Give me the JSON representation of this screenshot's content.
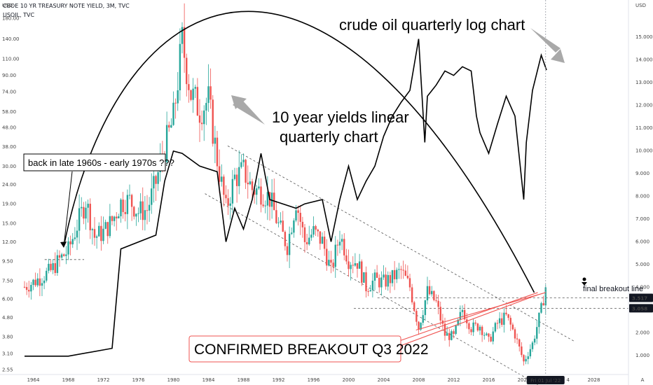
{
  "header": {
    "symbol_line": "CBOE 10 YR TREASURY NOTE YIELD, 3M, TVC",
    "overlay_line": "USOIL, TVC"
  },
  "axes": {
    "left_unit": "USD",
    "right_unit": "USD",
    "left_ticks": [
      {
        "label": "180.00"
      },
      {
        "label": "140.00"
      },
      {
        "label": "110.00"
      },
      {
        "label": "90.00"
      },
      {
        "label": "74.00"
      },
      {
        "label": "58.00"
      },
      {
        "label": "48.00"
      },
      {
        "label": "38.00"
      },
      {
        "label": "30.00"
      },
      {
        "label": "24.00"
      },
      {
        "label": "19.00"
      },
      {
        "label": "15.00"
      },
      {
        "label": "12.00"
      },
      {
        "label": "9.50"
      },
      {
        "label": "7.50"
      },
      {
        "label": "6.00"
      },
      {
        "label": "4.80"
      },
      {
        "label": "3.80"
      },
      {
        "label": "3.10"
      },
      {
        "label": "2.55"
      }
    ],
    "right_ticks": [
      {
        "label": "15.000",
        "value": 15
      },
      {
        "label": "14.000",
        "value": 14
      },
      {
        "label": "13.000",
        "value": 13
      },
      {
        "label": "12.000",
        "value": 12
      },
      {
        "label": "11.000",
        "value": 11
      },
      {
        "label": "10.000",
        "value": 10
      },
      {
        "label": "9.000",
        "value": 9
      },
      {
        "label": "8.000",
        "value": 8
      },
      {
        "label": "7.000",
        "value": 7
      },
      {
        "label": "6.000",
        "value": 6
      },
      {
        "label": "5.000",
        "value": 5
      },
      {
        "label": "4.000",
        "value": 4
      },
      {
        "label": "3.000",
        "value": 3
      },
      {
        "label": "2.000",
        "value": 2
      },
      {
        "label": "1.000",
        "value": 1
      }
    ],
    "x_ticks": [
      {
        "label": "1964",
        "year": 1964
      },
      {
        "label": "1968",
        "year": 1968
      },
      {
        "label": "1972",
        "year": 1972
      },
      {
        "label": "1976",
        "year": 1976
      },
      {
        "label": "1980",
        "year": 1980
      },
      {
        "label": "1984",
        "year": 1984
      },
      {
        "label": "1988",
        "year": 1988
      },
      {
        "label": "1992",
        "year": 1992
      },
      {
        "label": "1996",
        "year": 1996
      },
      {
        "label": "2000",
        "year": 2000
      },
      {
        "label": "2004",
        "year": 2004
      },
      {
        "label": "2008",
        "year": 2008
      },
      {
        "label": "2012",
        "year": 2012
      },
      {
        "label": "2016",
        "year": 2016
      },
      {
        "label": "2020",
        "year": 2020
      },
      {
        "label": "2028",
        "year": 2028
      }
    ],
    "date_marker": "Fri 01 Jul '22",
    "date_marker_tail": "4",
    "price_badges": [
      "3.517",
      "3.058"
    ],
    "corner": "A"
  },
  "annotations": {
    "crude_title": "crude oil quarterly log chart",
    "yields_title_line1": "10 year yields linear",
    "yields_title_line2": "quarterly chart",
    "back_in": "back in late 1960s - early 1970s ???",
    "confirmed": "CONFIRMED BREAKOUT Q3 2022",
    "final_breakout": "final breakout line"
  },
  "colors": {
    "up": "#26a69a",
    "down": "#ef5350",
    "oil_line": "#000000",
    "arc": "#000000",
    "breakout_line": "#ef5350",
    "dashed": "#555555",
    "arrow_grey": "#a9a9a9"
  },
  "chart_data": {
    "type": "line",
    "title": "",
    "x_range": [
      1963,
      2029
    ],
    "yield_axis_range": [
      0.3,
      16
    ],
    "series": [
      {
        "name": "CBOE 10 YR TREASURY NOTE YIELD",
        "scale": "right axis, linear",
        "x": [
          1963,
          1964,
          1966,
          1967,
          1968,
          1969,
          1970,
          1971,
          1972,
          1973,
          1974,
          1975,
          1976,
          1977,
          1978,
          1979,
          1980,
          1981,
          1982,
          1983,
          1984,
          1985,
          1986,
          1987,
          1988,
          1989,
          1990,
          1991,
          1992,
          1993,
          1994,
          1995,
          1996,
          1997,
          1998,
          1999,
          2000,
          2001,
          2002,
          2003,
          2004,
          2005,
          2006,
          2007,
          2008,
          2009,
          2010,
          2011,
          2012,
          2013,
          2014,
          2015,
          2016,
          2017,
          2018,
          2019,
          2020,
          2021,
          2022,
          2022.5
        ],
        "values": [
          4.0,
          4.2,
          4.7,
          5.2,
          5.6,
          6.7,
          7.8,
          6.2,
          6.4,
          6.9,
          7.7,
          7.8,
          7.3,
          7.4,
          8.6,
          10.1,
          11.4,
          14.8,
          12.5,
          11.8,
          12.2,
          9.6,
          7.4,
          8.8,
          9.1,
          8.3,
          8.2,
          7.9,
          6.7,
          5.8,
          7.8,
          6.0,
          6.4,
          6.0,
          4.7,
          6.3,
          5.2,
          5.1,
          4.0,
          4.3,
          4.2,
          4.4,
          4.7,
          4.0,
          2.2,
          3.8,
          3.3,
          1.9,
          1.8,
          3.0,
          2.2,
          2.3,
          1.6,
          2.4,
          2.7,
          1.9,
          0.7,
          1.5,
          3.0,
          4.0
        ]
      },
      {
        "name": "USOIL",
        "scale": "left axis, log",
        "x": [
          1963,
          1968,
          1973,
          1974,
          1978,
          1979,
          1980,
          1981,
          1983,
          1985,
          1986,
          1987,
          1988,
          1989,
          1990,
          1991,
          1994,
          1995,
          1997,
          1998,
          1999,
          2000,
          2001,
          2002,
          2003,
          2004,
          2005,
          2006,
          2007,
          2008,
          2008.7,
          2009,
          2010,
          2011,
          2012,
          2013,
          2014,
          2014.6,
          2015,
          2016,
          2017,
          2018,
          2019,
          2020,
          2020.3,
          2021,
          2022,
          2022.6
        ],
        "values": [
          3.0,
          3.0,
          3.3,
          11.0,
          13.0,
          25.0,
          36.0,
          35.0,
          30.0,
          28.0,
          12.0,
          18.0,
          14.0,
          20.0,
          35.0,
          20.0,
          18.0,
          19.0,
          20.0,
          12.0,
          20.0,
          30.0,
          20.0,
          25.0,
          30.0,
          43.0,
          55.0,
          65.0,
          75.0,
          140.0,
          40.0,
          70.0,
          80.0,
          95.0,
          90.0,
          100.0,
          95.0,
          55.0,
          45.0,
          35.0,
          50.0,
          70.0,
          55.0,
          20.0,
          40.0,
          75.0,
          115.0,
          96.0
        ]
      }
    ],
    "levels": [
      3.517,
      3.058
    ],
    "grid": false,
    "legend": "none"
  }
}
